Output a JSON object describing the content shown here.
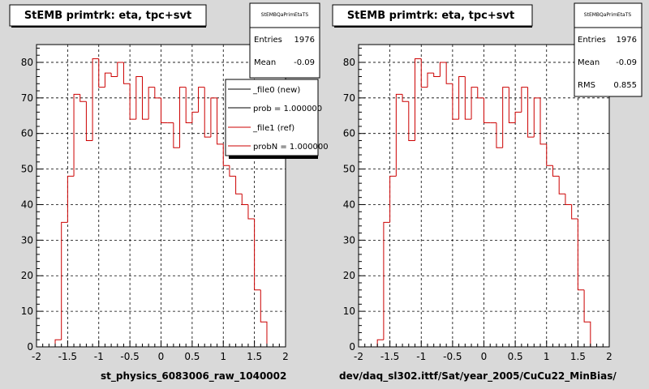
{
  "charts": [
    {
      "title": "StEMB primtrk: eta, tpc+svt",
      "stats": {
        "name": "StEMBQaPrimEtaTS",
        "rows": [
          {
            "label": "Entries",
            "value": "1976"
          },
          {
            "label": "Mean",
            "value": "-0.09"
          }
        ]
      },
      "legend": [
        {
          "label": "_file0 (new)",
          "color": "#000000"
        },
        {
          "label": "prob = 1.000000",
          "color": "#000000"
        },
        {
          "label": "_file1 (ref)",
          "color": "#cc0000"
        },
        {
          "label": "probN = 1.000000",
          "color": "#cc0000"
        }
      ],
      "xlabel": "st_physics_6083006_raw_1040002"
    },
    {
      "title": "StEMB primtrk: eta, tpc+svt",
      "stats": {
        "name": "StEMBQaPrimEtaTS",
        "rows": [
          {
            "label": "Entries",
            "value": "1976"
          },
          {
            "label": "Mean",
            "value": "-0.09"
          },
          {
            "label": "RMS",
            "value": "0.855"
          }
        ]
      },
      "xlabel": "dev/daq_sl302.ittf/Sat/year_2005/CuCu22_MinBias/"
    }
  ],
  "chart_data": {
    "type": "histogram",
    "xlim": [
      -2,
      2
    ],
    "ylim": [
      0,
      85
    ],
    "xticks": [
      "-2",
      "-1.5",
      "-1",
      "-0.5",
      "0",
      "0.5",
      "1",
      "1.5",
      "2"
    ],
    "yticks": [
      "0",
      "10",
      "20",
      "30",
      "40",
      "50",
      "60",
      "70",
      "80"
    ],
    "grid": true,
    "line_color": "#cc0000",
    "bin_edges": [
      -1.7,
      -1.6,
      -1.5,
      -1.4,
      -1.3,
      -1.2,
      -1.1,
      -1.0,
      -0.9,
      -0.8,
      -0.7,
      -0.6,
      -0.5,
      -0.4,
      -0.3,
      -0.2,
      -0.1,
      0.0,
      0.1,
      0.2,
      0.3,
      0.4,
      0.5,
      0.6,
      0.7,
      0.8,
      0.9,
      1.0,
      1.1,
      1.2,
      1.3,
      1.4,
      1.5,
      1.6,
      1.7
    ],
    "counts": [
      2,
      35,
      48,
      71,
      69,
      58,
      81,
      73,
      77,
      76,
      80,
      74,
      64,
      76,
      64,
      73,
      70,
      63,
      63,
      56,
      73,
      63,
      66,
      73,
      59,
      70,
      57,
      51,
      48,
      43,
      40,
      36,
      16,
      7
    ]
  }
}
